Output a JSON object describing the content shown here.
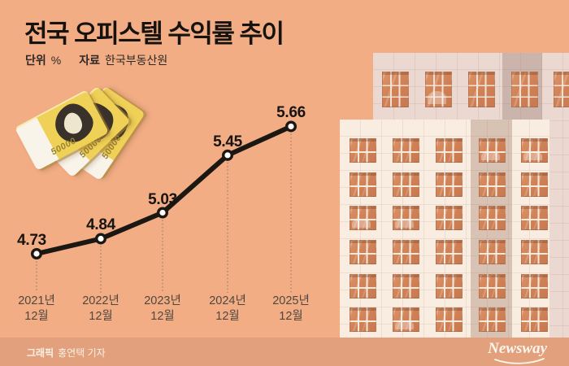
{
  "header": {
    "title": "전국 오피스텔 수익률 추이",
    "unit_label": "단위",
    "unit_value": "%",
    "source_label": "자료",
    "source_value": "한국부동산원"
  },
  "chart_data": {
    "type": "line",
    "title": "전국 오피스텔 수익률 추이",
    "unit": "%",
    "source": "한국부동산원",
    "categories": [
      "2021년 12월",
      "2022년 12월",
      "2023년 12월",
      "2024년 12월",
      "2025년 12월"
    ],
    "values": [
      4.73,
      4.84,
      5.03,
      5.45,
      5.66
    ],
    "series_name": "전국 오피스텔 수익률",
    "ylim": [
      4.6,
      5.8
    ],
    "grid": false,
    "legend": "none",
    "line_color": "#1b1713",
    "marker_fill": "#fdfcf9",
    "guide_color": "#83735f",
    "value_label_color": "#17130e",
    "axis_label_color": "#50483e"
  },
  "illustration": {
    "banknotes": [
      {
        "label": "50000"
      },
      {
        "label": "50000"
      },
      {
        "label": "50000"
      }
    ]
  },
  "footer": {
    "credit_label": "그래픽",
    "credit_value": "홍연택 기자",
    "brand": "Newsway"
  },
  "colors": {
    "background": "#F2AD85",
    "footer_bar": "#E2A17C",
    "building_back": "#EBD8D0",
    "building_front": "#F9EDE2",
    "window": "#D08156",
    "banknote": "#F0D157"
  }
}
